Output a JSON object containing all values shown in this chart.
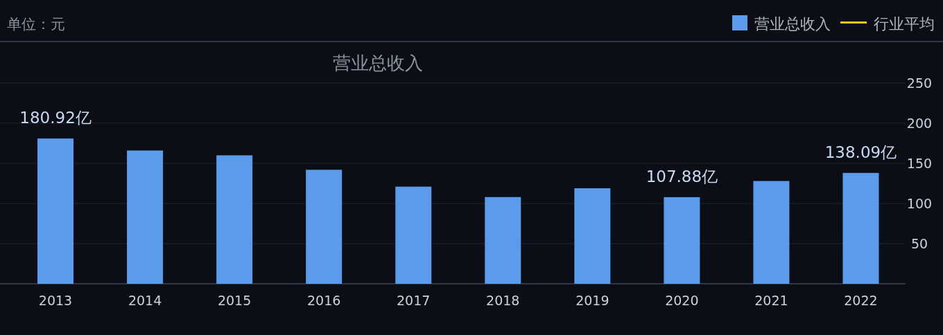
{
  "chart_data": {
    "type": "bar",
    "title": "营业总收入",
    "categories": [
      "2013",
      "2014",
      "2015",
      "2016",
      "2017",
      "2018",
      "2019",
      "2020",
      "2021",
      "2022"
    ],
    "series": [
      {
        "name": "营业总收入",
        "color": "#5b9bec",
        "values": [
          180.92,
          166,
          160,
          142,
          121,
          108,
          119,
          107.88,
          128,
          138.09
        ],
        "value_labels": [
          "180.92亿",
          null,
          null,
          null,
          null,
          null,
          null,
          "107.88亿",
          null,
          "138.09亿"
        ]
      },
      {
        "name": "行业平均",
        "type": "line",
        "color": "#f5c518",
        "values": [
          null,
          null,
          null,
          null,
          null,
          null,
          null,
          null,
          null,
          null
        ]
      }
    ],
    "ylim": [
      0,
      300
    ],
    "yticks": [
      50,
      100,
      150,
      200,
      250
    ],
    "grid": "y",
    "legend": "top right",
    "annotations": [
      "单位：元"
    ]
  }
}
